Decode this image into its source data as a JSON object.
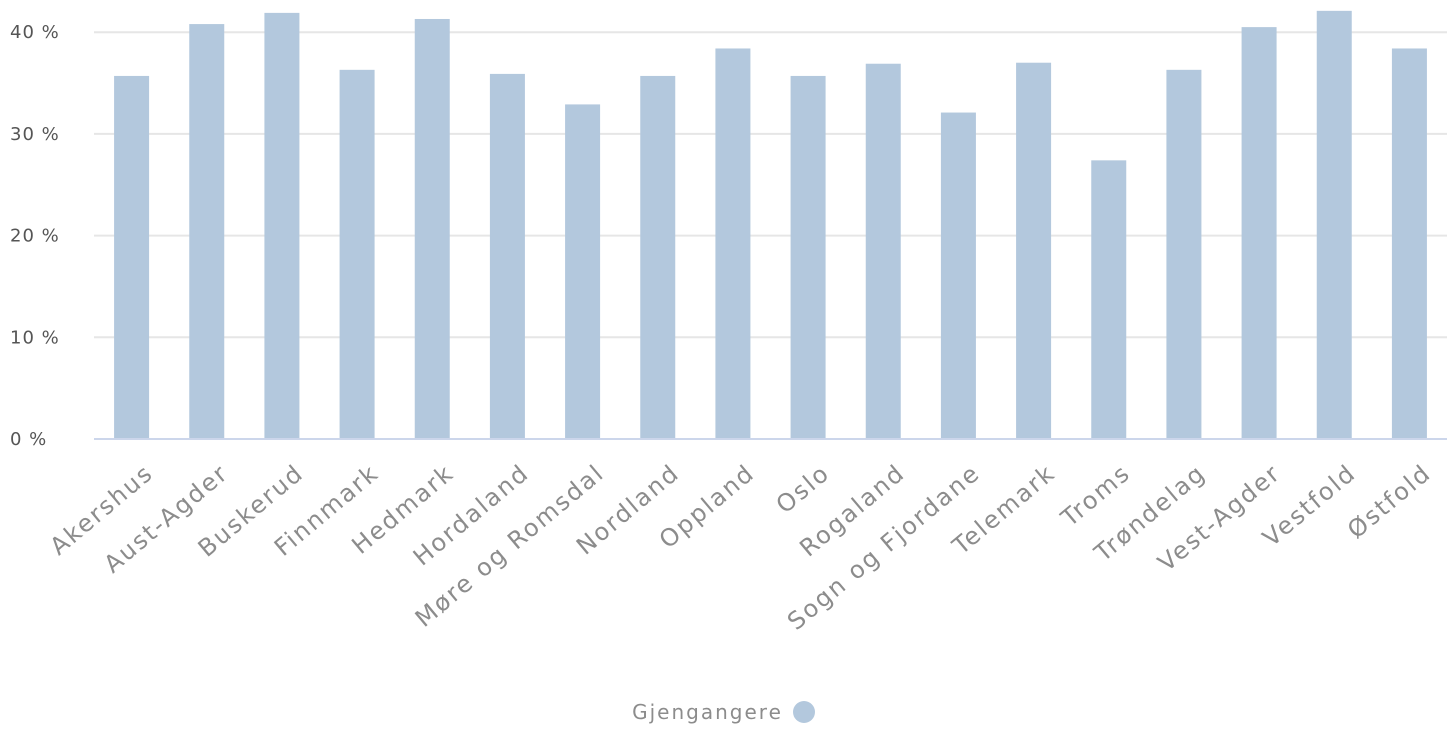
{
  "chart_data": {
    "type": "bar",
    "categories": [
      "Akershus",
      "Aust-Agder",
      "Buskerud",
      "Finnmark",
      "Hedmark",
      "Hordaland",
      "Møre og Romsdal",
      "Nordland",
      "Oppland",
      "Oslo",
      "Rogaland",
      "Sogn og Fjordane",
      "Telemark",
      "Troms",
      "Trøndelag",
      "Vest-Agder",
      "Vestfold",
      "Østfold"
    ],
    "series": [
      {
        "name": "Gjengangere",
        "values": [
          35.7,
          40.8,
          41.9,
          36.3,
          41.3,
          35.9,
          32.9,
          35.7,
          38.4,
          35.7,
          36.9,
          32.1,
          37.0,
          27.4,
          36.3,
          40.5,
          42.1,
          38.4
        ]
      }
    ],
    "yticks": [
      "0 %",
      "10 %",
      "20 %",
      "30 %",
      "40 %"
    ],
    "ylim": [
      0,
      42.5
    ],
    "grid": true,
    "legend_position": "bottom-center",
    "colors": {
      "bar": "#b3c8dd",
      "grid": "#e6e6e6",
      "axis": "#ccd6eb"
    }
  }
}
